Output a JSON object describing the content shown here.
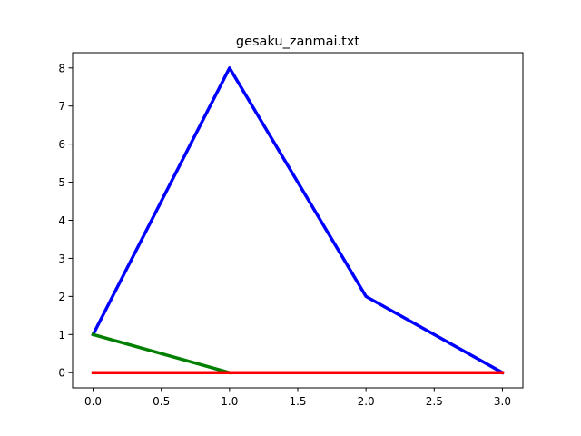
{
  "chart_data": {
    "type": "line",
    "title": "gesaku_zanmai.txt",
    "xlabel": "",
    "ylabel": "",
    "xlim": [
      -0.15,
      3.15
    ],
    "ylim": [
      -0.4,
      8.4
    ],
    "x_ticks": [
      0.0,
      0.5,
      1.0,
      1.5,
      2.0,
      2.5,
      3.0
    ],
    "x_tick_labels": [
      "0.0",
      "0.5",
      "1.0",
      "1.5",
      "2.0",
      "2.5",
      "3.0"
    ],
    "y_ticks": [
      0,
      1,
      2,
      3,
      4,
      5,
      6,
      7,
      8
    ],
    "y_tick_labels": [
      "0",
      "1",
      "2",
      "3",
      "4",
      "5",
      "6",
      "7",
      "8"
    ],
    "grid": false,
    "legend": "none",
    "series": [
      {
        "color": "#0000ff",
        "x": [
          0,
          1,
          2,
          3
        ],
        "y": [
          1,
          8,
          2,
          0
        ]
      },
      {
        "color": "#008000",
        "x": [
          0,
          1
        ],
        "y": [
          1,
          0
        ]
      },
      {
        "color": "#ff0000",
        "x": [
          0,
          1,
          2,
          3
        ],
        "y": [
          0,
          0,
          0,
          0
        ]
      }
    ]
  }
}
